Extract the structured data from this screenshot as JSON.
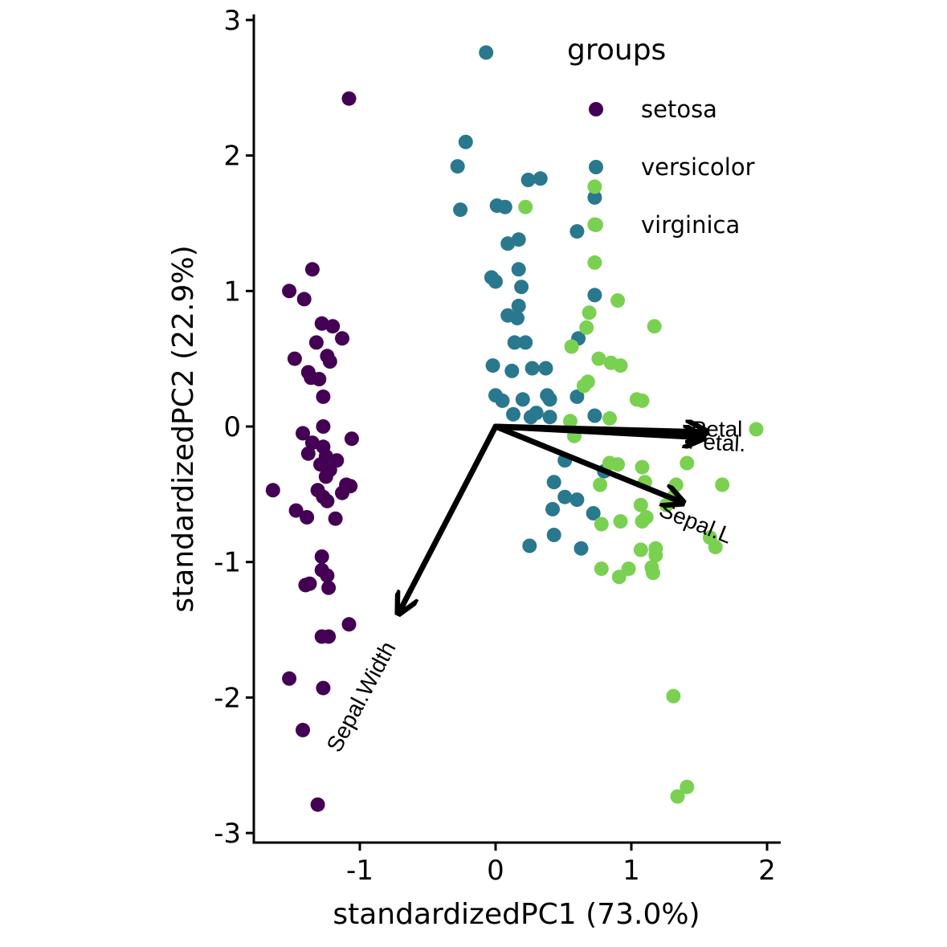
{
  "chart_data": {
    "type": "scatter",
    "xlabel": "standardizedPC1 (73.0%)",
    "ylabel": "standardizedPC2 (22.9%)",
    "xlim": [
      -1.78,
      2.08
    ],
    "ylim": [
      -3.1,
      3.05
    ],
    "x_ticks": [
      -1,
      0,
      1,
      2
    ],
    "x_tick_labels": [
      "-1",
      "0",
      "1",
      "2"
    ],
    "y_ticks": [
      -3,
      -2,
      -1,
      0,
      1,
      2,
      3
    ],
    "y_tick_labels": [
      "-3",
      "-2",
      "-1",
      "0",
      "1",
      "2",
      "3"
    ],
    "grid": false,
    "legend": {
      "title": "groups",
      "placement": "top-right",
      "entries": [
        "setosa",
        "versicolor",
        "virginica"
      ]
    },
    "colors": {
      "setosa": "#440154",
      "versicolor": "#2a788e",
      "virginica": "#7ad151",
      "arrow": "#000000"
    },
    "series": [
      {
        "name": "setosa",
        "points": [
          [
            -1.08,
            2.42
          ],
          [
            -1.35,
            1.16
          ],
          [
            -1.52,
            1.0
          ],
          [
            -1.41,
            0.94
          ],
          [
            -1.28,
            0.76
          ],
          [
            -1.2,
            0.74
          ],
          [
            -1.13,
            0.65
          ],
          [
            -1.32,
            0.62
          ],
          [
            -1.24,
            0.52
          ],
          [
            -1.48,
            0.5
          ],
          [
            -1.22,
            0.48
          ],
          [
            -1.38,
            0.4
          ],
          [
            -1.36,
            0.36
          ],
          [
            -1.3,
            0.35
          ],
          [
            -1.27,
            0.22
          ],
          [
            -1.27,
            0.0
          ],
          [
            -1.42,
            -0.05
          ],
          [
            -1.06,
            -0.09
          ],
          [
            -1.35,
            -0.12
          ],
          [
            -1.27,
            -0.15
          ],
          [
            -1.38,
            -0.2
          ],
          [
            -1.25,
            -0.22
          ],
          [
            -1.17,
            -0.25
          ],
          [
            -1.29,
            -0.28
          ],
          [
            -1.22,
            -0.32
          ],
          [
            -1.25,
            -0.37
          ],
          [
            -1.1,
            -0.43
          ],
          [
            -1.07,
            -0.44
          ],
          [
            -1.64,
            -0.47
          ],
          [
            -1.31,
            -0.47
          ],
          [
            -1.27,
            -0.52
          ],
          [
            -1.13,
            -0.49
          ],
          [
            -1.24,
            -0.55
          ],
          [
            -1.47,
            -0.62
          ],
          [
            -1.39,
            -0.67
          ],
          [
            -1.18,
            -0.68
          ],
          [
            -1.28,
            -0.96
          ],
          [
            -1.28,
            -1.06
          ],
          [
            -1.24,
            -1.1
          ],
          [
            -1.37,
            -1.16
          ],
          [
            -1.4,
            -1.17
          ],
          [
            -1.23,
            -1.19
          ],
          [
            -1.08,
            -1.46
          ],
          [
            -1.28,
            -1.55
          ],
          [
            -1.23,
            -1.55
          ],
          [
            -1.52,
            -1.86
          ],
          [
            -1.27,
            -1.93
          ],
          [
            -1.42,
            -2.24
          ],
          [
            -1.31,
            -2.79
          ]
        ]
      },
      {
        "name": "versicolor",
        "points": [
          [
            -0.07,
            2.76
          ],
          [
            -0.22,
            2.1
          ],
          [
            -0.28,
            1.92
          ],
          [
            0.24,
            1.82
          ],
          [
            0.33,
            1.83
          ],
          [
            0.73,
            1.69
          ],
          [
            0.01,
            1.63
          ],
          [
            0.07,
            1.62
          ],
          [
            -0.26,
            1.6
          ],
          [
            0.6,
            1.44
          ],
          [
            0.17,
            1.38
          ],
          [
            0.09,
            1.35
          ],
          [
            0.17,
            1.16
          ],
          [
            -0.03,
            1.1
          ],
          [
            0.0,
            1.07
          ],
          [
            0.19,
            1.03
          ],
          [
            0.73,
            0.97
          ],
          [
            0.17,
            0.89
          ],
          [
            0.09,
            0.82
          ],
          [
            0.16,
            0.8
          ],
          [
            0.61,
            0.65
          ],
          [
            0.14,
            0.62
          ],
          [
            0.22,
            0.62
          ],
          [
            -0.02,
            0.45
          ],
          [
            0.27,
            0.43
          ],
          [
            0.37,
            0.43
          ],
          [
            0.12,
            0.41
          ],
          [
            0.38,
            0.23
          ],
          [
            0.0,
            0.23
          ],
          [
            0.05,
            0.19
          ],
          [
            0.2,
            0.2
          ],
          [
            0.4,
            0.2
          ],
          [
            0.6,
            0.22
          ],
          [
            0.13,
            0.09
          ],
          [
            0.3,
            0.1
          ],
          [
            0.4,
            0.07
          ],
          [
            0.26,
            0.07
          ],
          [
            0.73,
            0.08
          ],
          [
            0.51,
            -0.25
          ],
          [
            0.8,
            -0.33
          ],
          [
            0.43,
            -0.41
          ],
          [
            0.51,
            -0.52
          ],
          [
            0.6,
            -0.54
          ],
          [
            0.42,
            -0.61
          ],
          [
            0.72,
            -0.64
          ],
          [
            0.43,
            -0.8
          ],
          [
            0.25,
            -0.88
          ],
          [
            0.63,
            -0.9
          ]
        ]
      },
      {
        "name": "virginica",
        "points": [
          [
            0.22,
            1.62
          ],
          [
            0.73,
            1.77
          ],
          [
            0.73,
            1.49
          ],
          [
            0.73,
            1.21
          ],
          [
            0.9,
            0.93
          ],
          [
            0.69,
            0.84
          ],
          [
            0.67,
            0.73
          ],
          [
            1.17,
            0.74
          ],
          [
            0.56,
            0.59
          ],
          [
            0.76,
            0.5
          ],
          [
            0.85,
            0.47
          ],
          [
            0.92,
            0.45
          ],
          [
            0.68,
            0.33
          ],
          [
            0.65,
            0.3
          ],
          [
            1.04,
            0.2
          ],
          [
            1.08,
            0.19
          ],
          [
            0.55,
            0.04
          ],
          [
            0.84,
            0.06
          ],
          [
            1.92,
            -0.02
          ],
          [
            0.58,
            -0.07
          ],
          [
            0.84,
            -0.27
          ],
          [
            0.9,
            -0.28
          ],
          [
            1.41,
            -0.27
          ],
          [
            1.08,
            -0.3
          ],
          [
            0.77,
            -0.43
          ],
          [
            1.1,
            -0.41
          ],
          [
            1.33,
            -0.43
          ],
          [
            1.67,
            -0.43
          ],
          [
            1.31,
            -0.52
          ],
          [
            1.26,
            -0.58
          ],
          [
            1.07,
            -0.58
          ],
          [
            0.78,
            -0.72
          ],
          [
            0.92,
            -0.7
          ],
          [
            1.08,
            -0.7
          ],
          [
            1.11,
            -0.67
          ],
          [
            1.58,
            -0.82
          ],
          [
            1.62,
            -0.89
          ],
          [
            1.07,
            -0.91
          ],
          [
            1.18,
            -0.9
          ],
          [
            1.18,
            -0.95
          ],
          [
            0.78,
            -1.05
          ],
          [
            0.98,
            -1.05
          ],
          [
            1.15,
            -1.04
          ],
          [
            0.91,
            -1.11
          ],
          [
            1.16,
            -1.08
          ],
          [
            1.31,
            -1.99
          ],
          [
            1.41,
            -2.66
          ],
          [
            1.34,
            -2.73
          ]
        ]
      }
    ],
    "loadings": [
      {
        "label": "Petal",
        "end": [
          1.52,
          -0.04
        ],
        "label_at": [
          1.63,
          -0.03
        ],
        "angle": 0
      },
      {
        "label": "Petal.",
        "end": [
          1.5,
          -0.08
        ],
        "label_at": [
          1.63,
          -0.13
        ],
        "angle": 3
      },
      {
        "label": "Sepal.L",
        "end": [
          1.35,
          -0.55
        ],
        "label_at": [
          1.47,
          -0.72
        ],
        "angle": 22
      },
      {
        "label": "Sepal.Width",
        "end": [
          -0.7,
          -1.35
        ],
        "label_at": [
          -0.98,
          -2.0
        ],
        "angle": -62
      }
    ]
  }
}
